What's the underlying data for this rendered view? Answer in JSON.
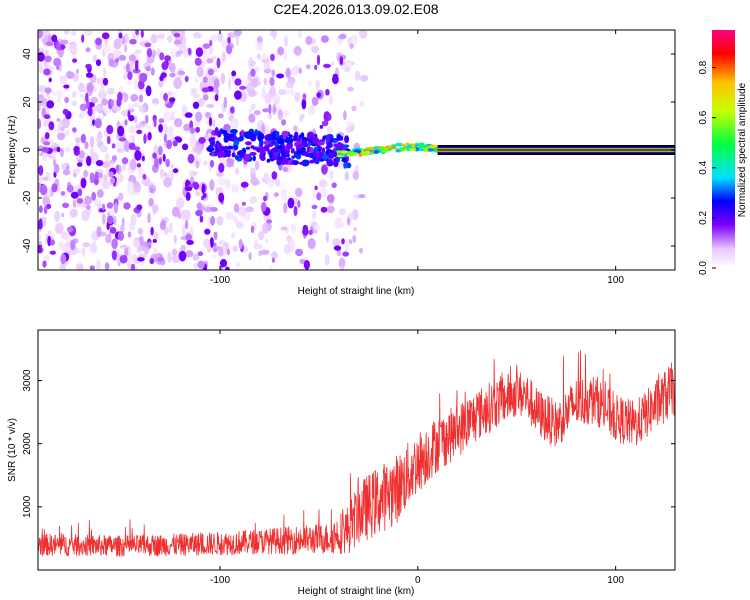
{
  "title": "C2E4.2026.013.09.02.E08",
  "chart_data": [
    {
      "type": "heatmap",
      "title": "C2E4.2026.013.09.02.E08",
      "xlabel": "Height of straight line (km)",
      "ylabel": "Frequency (Hz)",
      "xlim": [
        -192,
        130
      ],
      "ylim": [
        -50,
        50
      ],
      "x_ticks": [
        -100,
        0,
        100
      ],
      "x_tick_labels": [
        "-100",
        "",
        "100"
      ],
      "y_ticks": [
        -40,
        -20,
        0,
        20,
        40
      ],
      "y_tick_labels": [
        "-40",
        "-20",
        "0",
        "20",
        "40"
      ],
      "features": {
        "noise_region_x": [
          -192,
          -35
        ],
        "scatter_band_x": [
          -105,
          -35
        ],
        "meteor_trace": {
          "x": [
            -40,
            -20,
            -10,
            0,
            10
          ],
          "y": [
            -2,
            0,
            1,
            1.5,
            0
          ]
        },
        "constant_line": {
          "x": [
            10,
            130
          ],
          "y": 0
        }
      },
      "colorbar": {
        "label": "Normalized spectral amplitude",
        "range": [
          0,
          0.95
        ],
        "ticks": [
          0.0,
          0.2,
          0.4,
          0.6,
          0.8
        ],
        "tick_labels": [
          "0.0",
          "0.2",
          "0.4",
          "0.6",
          "0.8"
        ],
        "stops": [
          {
            "v": 0.0,
            "color": "#ffffff"
          },
          {
            "v": 0.08,
            "color": "#e8c8ff"
          },
          {
            "v": 0.18,
            "color": "#8000ff"
          },
          {
            "v": 0.28,
            "color": "#0000ff"
          },
          {
            "v": 0.38,
            "color": "#00e0ff"
          },
          {
            "v": 0.52,
            "color": "#00ff40"
          },
          {
            "v": 0.66,
            "color": "#c8ff00"
          },
          {
            "v": 0.78,
            "color": "#ffc000"
          },
          {
            "v": 0.9,
            "color": "#ff0000"
          },
          {
            "v": 1.0,
            "color": "#ff0080"
          }
        ]
      }
    },
    {
      "type": "line",
      "xlabel": "Height of straight line (km)",
      "ylabel": "SNR (10 * v/v)",
      "xlim": [
        -192,
        130
      ],
      "ylim": [
        0,
        3800
      ],
      "x_ticks": [
        -100,
        0,
        100
      ],
      "x_tick_labels": [
        "-100",
        "0",
        "100"
      ],
      "y_ticks": [
        1000,
        2000,
        3000
      ],
      "y_tick_labels": [
        "1000",
        "2000",
        "3000"
      ],
      "color": "#f03030",
      "envelope": {
        "x": [
          -192,
          -150,
          -120,
          -100,
          -80,
          -60,
          -45,
          -35,
          -30,
          -20,
          -10,
          0,
          10,
          20,
          30,
          40,
          50,
          55,
          60,
          70,
          80,
          90,
          100,
          110,
          120,
          130
        ],
        "mean": [
          400,
          380,
          400,
          420,
          450,
          480,
          500,
          650,
          900,
          1100,
          1300,
          1700,
          2000,
          2200,
          2450,
          2650,
          2800,
          2750,
          2500,
          2300,
          2650,
          2700,
          2400,
          2300,
          2600,
          2900
        ],
        "spread": [
          180,
          170,
          180,
          190,
          200,
          230,
          250,
          400,
          500,
          550,
          550,
          500,
          450,
          430,
          420,
          400,
          380,
          380,
          400,
          380,
          400,
          400,
          380,
          380,
          400,
          450
        ]
      }
    }
  ]
}
